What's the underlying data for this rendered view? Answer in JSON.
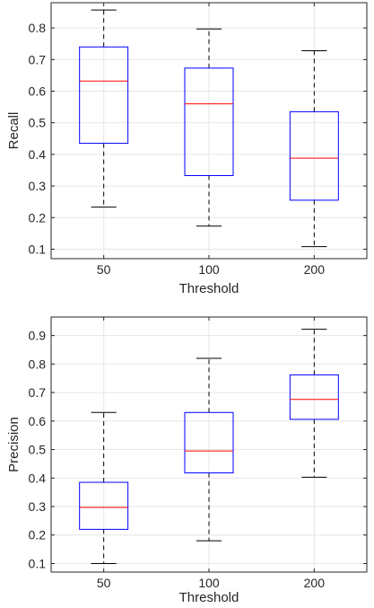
{
  "chart_data": [
    {
      "type": "box",
      "xlabel": "Threshold",
      "ylabel": "Recall",
      "categories": [
        "50",
        "100",
        "200"
      ],
      "ylim": [
        0.07,
        0.88
      ],
      "yticks": [
        "0.1",
        "0.2",
        "0.3",
        "0.4",
        "0.5",
        "0.6",
        "0.7",
        "0.8"
      ],
      "grid": true,
      "boxes": [
        {
          "category": "50",
          "whisker_low": 0.233,
          "q1": 0.435,
          "median": 0.632,
          "q3": 0.74,
          "whisker_high": 0.857
        },
        {
          "category": "100",
          "whisker_low": 0.173,
          "q1": 0.333,
          "median": 0.56,
          "q3": 0.673,
          "whisker_high": 0.797
        },
        {
          "category": "200",
          "whisker_low": 0.108,
          "q1": 0.255,
          "median": 0.388,
          "q3": 0.535,
          "whisker_high": 0.728
        }
      ]
    },
    {
      "type": "box",
      "xlabel": "Threshold",
      "ylabel": "Precision",
      "categories": [
        "50",
        "100",
        "200"
      ],
      "ylim": [
        0.07,
        0.965
      ],
      "yticks": [
        "0.1",
        "0.2",
        "0.3",
        "0.4",
        "0.5",
        "0.6",
        "0.7",
        "0.8",
        "0.9"
      ],
      "grid": true,
      "boxes": [
        {
          "category": "50",
          "whisker_low": 0.1,
          "q1": 0.22,
          "median": 0.297,
          "q3": 0.385,
          "whisker_high": 0.63
        },
        {
          "category": "100",
          "whisker_low": 0.18,
          "q1": 0.418,
          "median": 0.495,
          "q3": 0.63,
          "whisker_high": 0.82
        },
        {
          "category": "200",
          "whisker_low": 0.403,
          "q1": 0.606,
          "median": 0.676,
          "q3": 0.762,
          "whisker_high": 0.922
        }
      ]
    }
  ],
  "colors": {
    "box": "#0000ff",
    "median": "#ff0000",
    "whisker": "#000000",
    "grid": "#e6e6e6",
    "axis": "#262626"
  }
}
